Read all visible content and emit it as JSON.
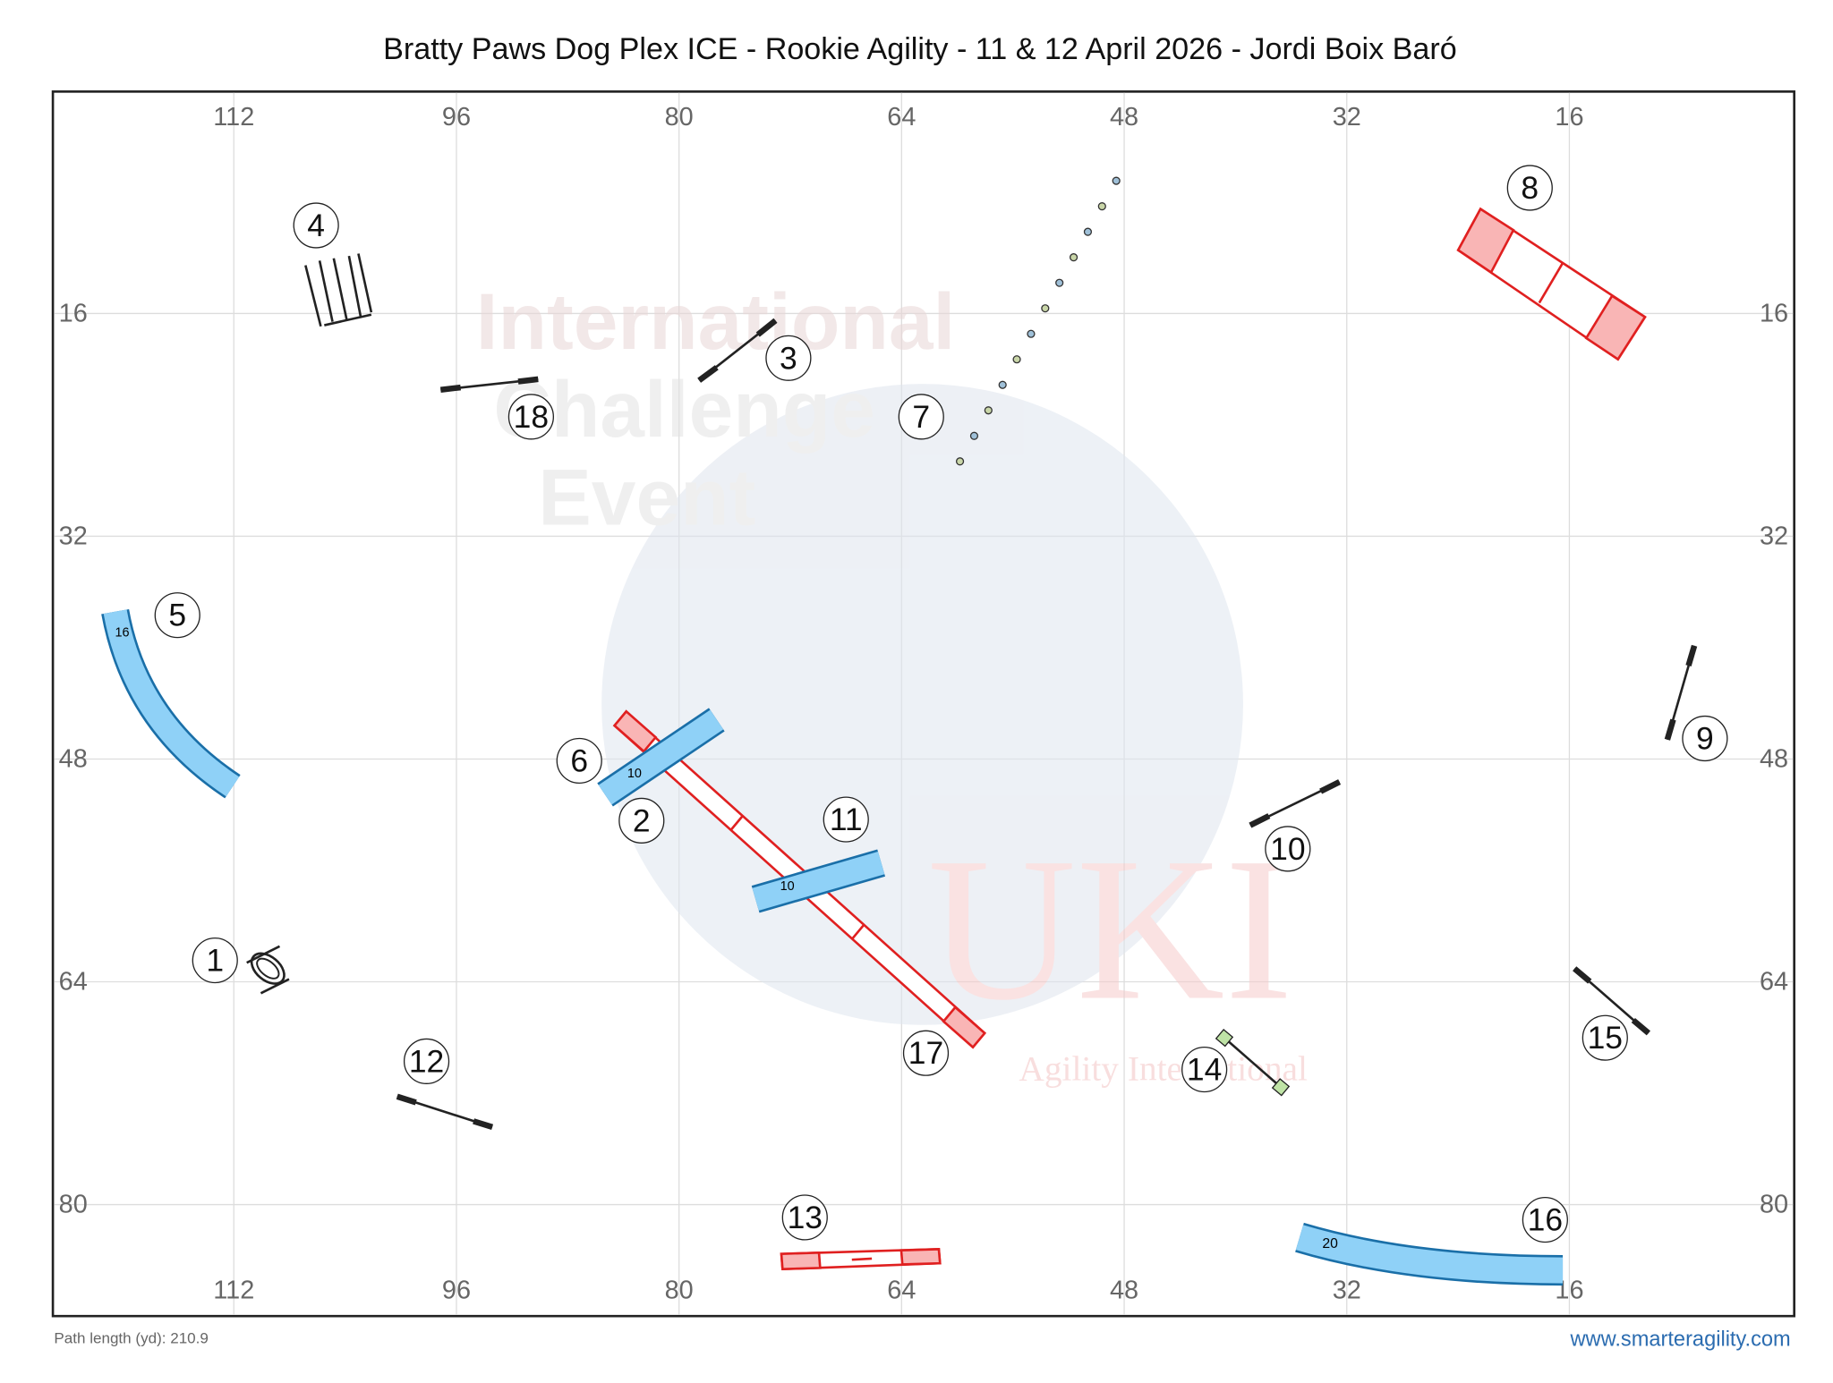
{
  "header": {
    "title": "Bratty Paws Dog Plex ICE - Rookie Agility - 11 & 12 April 2026 - Jordi Boix Baró"
  },
  "grid": {
    "x_labels": [
      112,
      96,
      80,
      64,
      48,
      32,
      16
    ],
    "y_labels": [
      16,
      32,
      48,
      64,
      80
    ]
  },
  "obstacles": [
    {
      "number": "1"
    },
    {
      "number": "2"
    },
    {
      "number": "3"
    },
    {
      "number": "4"
    },
    {
      "number": "5"
    },
    {
      "number": "6"
    },
    {
      "number": "7"
    },
    {
      "number": "8"
    },
    {
      "number": "9"
    },
    {
      "number": "10"
    },
    {
      "number": "11"
    },
    {
      "number": "12"
    },
    {
      "number": "13"
    },
    {
      "number": "14"
    },
    {
      "number": "15"
    },
    {
      "number": "16"
    },
    {
      "number": "17"
    },
    {
      "number": "18"
    }
  ],
  "tunnel_labels": [
    "16",
    "10",
    "10",
    "20"
  ],
  "watermark": {
    "lines": [
      "International",
      "Challenge",
      "Event"
    ],
    "logo": "UKI",
    "logo_subtitle": "Agility International"
  },
  "footer": {
    "path_length": "Path length (yd): 210.9",
    "website": "www.smarteragility.com"
  }
}
